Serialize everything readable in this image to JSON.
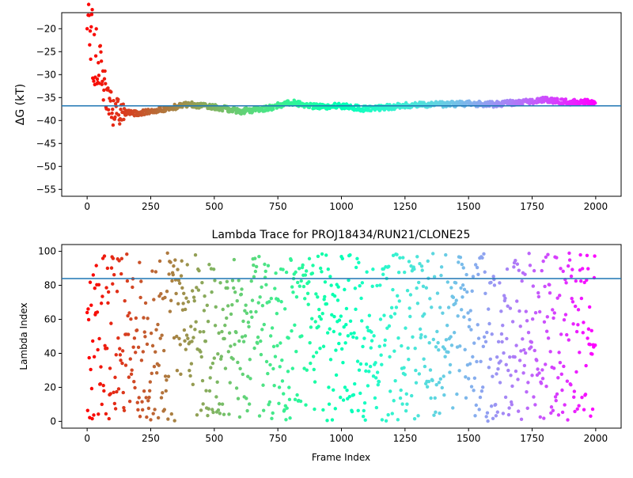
{
  "chart_data": [
    {
      "type": "scatter",
      "title": "",
      "xlabel": "",
      "ylabel": "ΔG (kT)",
      "xlim": [
        -100,
        2100
      ],
      "ylim": [
        -56.5,
        -16.5
      ],
      "xticks": [
        0,
        250,
        500,
        750,
        1000,
        1250,
        1500,
        1750,
        2000
      ],
      "yticks": [
        -55,
        -50,
        -45,
        -40,
        -35,
        -30,
        -25,
        -20
      ],
      "hline": -36.8,
      "hline_color": "#1f77b4",
      "colormap": "rainbow",
      "grid": false,
      "series": [
        {
          "frames": [
            0,
            100,
            200,
            300,
            400,
            500,
            600,
            700,
            800,
            900,
            1000,
            1100,
            1200,
            1300,
            1400,
            1500,
            1600,
            1700,
            1800,
            1900,
            2000
          ],
          "values": [
            -20,
            -38,
            -38.5,
            -37.5,
            -36.5,
            -37,
            -38,
            -37.5,
            -36,
            -37,
            -36.8,
            -37.5,
            -37,
            -36.5,
            -36.5,
            -36.3,
            -36.5,
            -36,
            -35.5,
            -36,
            -36
          ]
        }
      ]
    },
    {
      "type": "scatter",
      "title": "Lambda Trace for PROJ18434/RUN21/CLONE25",
      "xlabel": "Frame Index",
      "ylabel": "Lambda Index",
      "xlim": [
        -100,
        2100
      ],
      "ylim": [
        -4,
        104
      ],
      "xticks": [
        0,
        250,
        500,
        750,
        1000,
        1250,
        1500,
        1750,
        2000
      ],
      "yticks": [
        0,
        20,
        40,
        60,
        80,
        100
      ],
      "hline": 84,
      "hline_color": "#1f77b4",
      "colormap": "rainbow",
      "grid": false,
      "series": [
        {
          "frames_range": [
            0,
            2000
          ],
          "values_range": [
            0,
            99
          ]
        }
      ]
    }
  ]
}
